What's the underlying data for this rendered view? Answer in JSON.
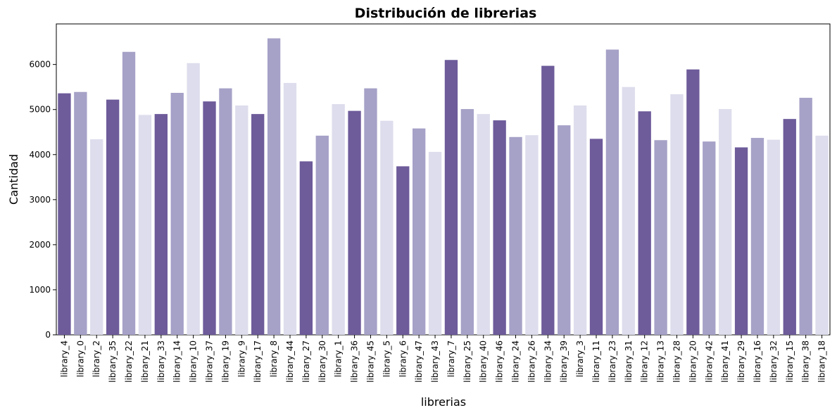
{
  "chart_data": {
    "type": "bar",
    "title": "Distribución de librerias",
    "xlabel": "librerias",
    "ylabel": "Cantidad",
    "ylim": [
      0,
      6900
    ],
    "yticks": [
      0,
      1000,
      2000,
      3000,
      4000,
      5000,
      6000
    ],
    "grid": false,
    "palette": [
      "#6d5b9a",
      "#a5a1c7",
      "#dddded"
    ],
    "categories": [
      "library_4",
      "library_0",
      "library_2",
      "library_35",
      "library_22",
      "library_21",
      "library_33",
      "library_14",
      "library_10",
      "library_37",
      "library_19",
      "library_9",
      "library_17",
      "library_8",
      "library_44",
      "library_27",
      "library_30",
      "library_1",
      "library_36",
      "library_45",
      "library_5",
      "library_6",
      "library_47",
      "library_43",
      "library_7",
      "library_25",
      "library_40",
      "library_46",
      "library_24",
      "library_26",
      "library_34",
      "library_39",
      "library_3",
      "library_11",
      "library_23",
      "library_31",
      "library_12",
      "library_13",
      "library_28",
      "library_20",
      "library_42",
      "library_41",
      "library_29",
      "library_16",
      "library_32",
      "library_15",
      "library_38",
      "library_18"
    ],
    "values": [
      5360,
      5390,
      4340,
      5220,
      6280,
      4880,
      4900,
      5370,
      6030,
      5180,
      5470,
      5090,
      4900,
      6580,
      5590,
      3850,
      4420,
      5120,
      4970,
      5470,
      4750,
      3740,
      4580,
      4060,
      6100,
      5010,
      4900,
      4760,
      4390,
      4430,
      5970,
      4650,
      5090,
      4350,
      6330,
      5500,
      4960,
      4320,
      5340,
      5890,
      4290,
      5010,
      4160,
      4370,
      4330,
      4790,
      5260,
      4420
    ]
  }
}
